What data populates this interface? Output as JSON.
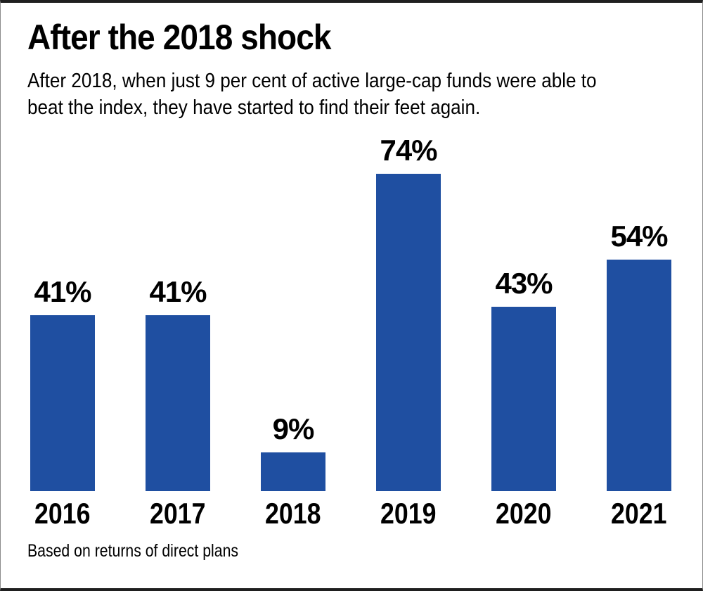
{
  "chart_data": {
    "type": "bar",
    "title": "After the 2018 shock",
    "subtitle_lines": [
      "After 2018, when just 9 per cent of active large-cap funds were able to",
      "beat the index, they have started to find their feet again."
    ],
    "categories": [
      "2016",
      "2017",
      "2018",
      "2019",
      "2020",
      "2021"
    ],
    "values": [
      41,
      41,
      9,
      74,
      43,
      54
    ],
    "value_labels": [
      "41%",
      "41%",
      "9%",
      "74%",
      "43%",
      "54%"
    ],
    "footnote": "Based on returns of direct plans",
    "bar_color": "#1f4fa1",
    "text_color": "#000000",
    "xlabel": "",
    "ylabel": "",
    "ylim": [
      0,
      80
    ],
    "grid": false,
    "legend": false,
    "data_labels_position": "above-bars"
  }
}
